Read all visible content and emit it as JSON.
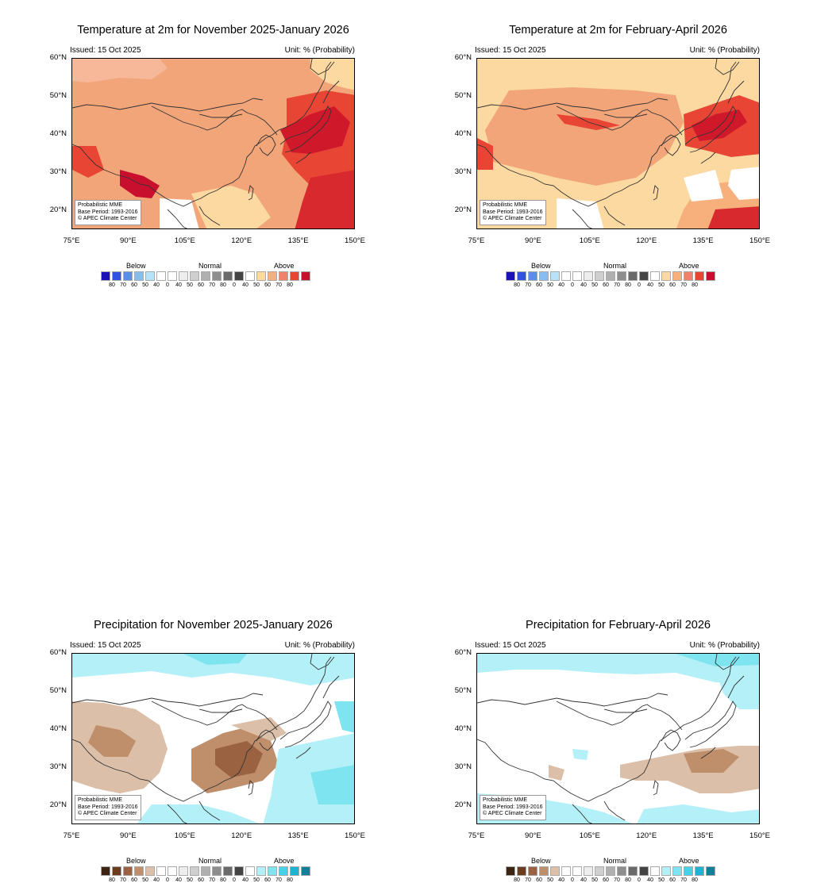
{
  "panels": [
    {
      "title": "Temperature at 2m for November 2025-January 2026",
      "issued": "Issued: 15 Oct 2025",
      "unit": "Unit: % (Probability)",
      "variable": "temperature"
    },
    {
      "title": "Temperature at 2m for February-April 2026",
      "issued": "Issued: 15 Oct 2025",
      "unit": "Unit: % (Probability)",
      "variable": "temperature"
    },
    {
      "title": "Precipitation for November 2025-January 2026",
      "issued": "Issued: 15 Oct 2025",
      "unit": "Unit: % (Probability)",
      "variable": "precipitation"
    },
    {
      "title": "Precipitation for February-April 2026",
      "issued": "Issued: 15 Oct 2025",
      "unit": "Unit: % (Probability)",
      "variable": "precipitation"
    }
  ],
  "note": {
    "line1": "Probabilistic MME",
    "line2": "Base Period: 1993-2016",
    "line3": "© APEC Climate Center"
  },
  "y_labels": [
    "60°N",
    "50°N",
    "40°N",
    "30°N",
    "20°N"
  ],
  "x_labels": [
    "75°E",
    "90°E",
    "105°E",
    "120°E",
    "135°E",
    "150°E"
  ],
  "legend": {
    "below": "Below",
    "normal": "Normal",
    "above": "Above",
    "values": [
      "80",
      "70",
      "60",
      "50",
      "40",
      "0",
      "40",
      "50",
      "60",
      "70",
      "80",
      "0",
      "40",
      "50",
      "60",
      "70",
      "80"
    ],
    "temp_below_colors": [
      "#1a12b8",
      "#2f52e0",
      "#5b8ee8",
      "#87bdf0",
      "#b7e2f8"
    ],
    "precip_below_colors": [
      "#3c2312",
      "#6b3d1e",
      "#9a6240",
      "#bf8e6b",
      "#dcbfa8"
    ],
    "normal_colors": [
      "#ffffff",
      "#ffffff",
      "#ededed",
      "#cfcfcf",
      "#b0b0b0",
      "#8d8d8d",
      "#6a6a6a",
      "#444444"
    ],
    "temp_above_colors": [
      "#ffffff",
      "#fbd9a0",
      "#f7b07c",
      "#f0816a",
      "#e84535",
      "#c8102e"
    ],
    "precip_above_colors": [
      "#ffffff",
      "#b3f0f8",
      "#7de4f0",
      "#46d2e6",
      "#1cb4cf",
      "#0f7f9a"
    ]
  }
}
